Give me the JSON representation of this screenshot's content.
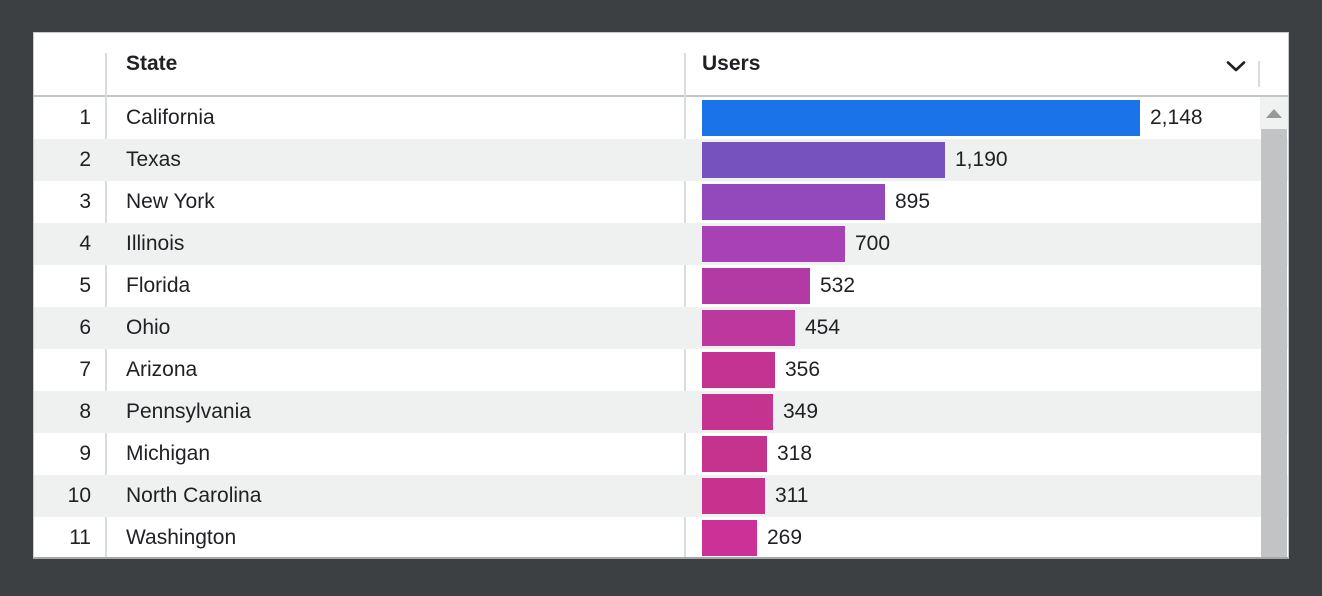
{
  "frame": {
    "background_color": "#3c4043",
    "card_background_color": "#ffffff",
    "stripe_color": "#eff0f0",
    "text_color": "#202124"
  },
  "table": {
    "header": {
      "state_label": "State",
      "users_label": "Users",
      "sort_icon": "chevron-down"
    },
    "rows": [
      {
        "rank": "1",
        "state": "California",
        "value": 2148,
        "value_label": "2,148",
        "bar_color": "#1a73e8"
      },
      {
        "rank": "2",
        "state": "Texas",
        "value": 1190,
        "value_label": "1,190",
        "bar_color": "#7552be"
      },
      {
        "rank": "3",
        "state": "New York",
        "value": 895,
        "value_label": "895",
        "bar_color": "#9348bc"
      },
      {
        "rank": "4",
        "state": "Illinois",
        "value": 700,
        "value_label": "700",
        "bar_color": "#a841b4"
      },
      {
        "rank": "5",
        "state": "Florida",
        "value": 532,
        "value_label": "532",
        "bar_color": "#b33aa5"
      },
      {
        "rank": "6",
        "state": "Ohio",
        "value": 454,
        "value_label": "454",
        "bar_color": "#bc389e"
      },
      {
        "rank": "7",
        "state": "Arizona",
        "value": 356,
        "value_label": "356",
        "bar_color": "#c43391"
      },
      {
        "rank": "8",
        "state": "Pennsylvania",
        "value": 349,
        "value_label": "349",
        "bar_color": "#c53390"
      },
      {
        "rank": "9",
        "state": "Michigan",
        "value": 318,
        "value_label": "318",
        "bar_color": "#c6338f"
      },
      {
        "rank": "10",
        "state": "North Carolina",
        "value": 311,
        "value_label": "311",
        "bar_color": "#c7328f"
      },
      {
        "rank": "11",
        "state": "Washington",
        "value": 269,
        "value_label": "269",
        "bar_color": "#cb3197"
      }
    ]
  },
  "scrollbar": {
    "up_arrow_icon": "triangle-up",
    "track_color": "#f0f1f1",
    "thumb_color": "#c2c3c5"
  },
  "chart_data": {
    "type": "bar",
    "orientation": "horizontal",
    "title": "",
    "xlabel": "Users",
    "ylabel": "State",
    "categories": [
      "California",
      "Texas",
      "New York",
      "Illinois",
      "Florida",
      "Ohio",
      "Arizona",
      "Pennsylvania",
      "Michigan",
      "North Carolina",
      "Washington"
    ],
    "values": [
      2148,
      1190,
      895,
      700,
      532,
      454,
      356,
      349,
      318,
      311,
      269
    ],
    "value_labels": [
      "2,148",
      "1,190",
      "895",
      "700",
      "532",
      "454",
      "356",
      "349",
      "318",
      "311",
      "269"
    ],
    "bar_colors": [
      "#1a73e8",
      "#7552be",
      "#9348bc",
      "#a841b4",
      "#b33aa5",
      "#bc389e",
      "#c43391",
      "#c53390",
      "#c6338f",
      "#c7328f",
      "#cb3197"
    ],
    "xlim": [
      0,
      2148
    ],
    "grid": false,
    "legend": false
  }
}
